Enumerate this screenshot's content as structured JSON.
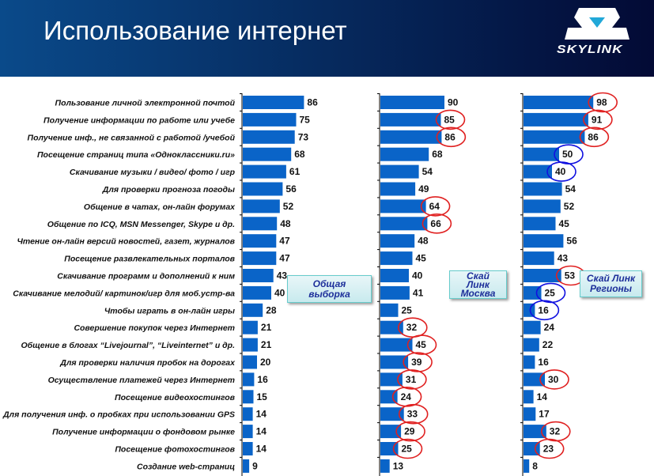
{
  "header": {
    "title": "Использование интернет",
    "logo_text": "SKYLINK"
  },
  "colors": {
    "bar": "#0a64c8",
    "red_circle": "#e02020",
    "blue_circle": "#1010e0"
  },
  "chart_data": {
    "type": "bar",
    "orientation": "horizontal",
    "categories": [
      "Пользование личной электронной почтой",
      "Получение информации по работе или учебе",
      "Получение инф., не связанной с работой /учебой",
      "Посещение страниц типа «Одноклассники.ru»",
      "Скачивание музыки / видео/ фото / игр",
      "Для проверки прогноза погоды",
      "Общение в чатах, он-лайн форумах",
      "Общение по ICQ, MSN Messenger, Skype и др.",
      "Чтение он-лайн версий новостей, газет, журналов",
      "Посещение  развлекательных порталов",
      "Скачивание программ и дополнений к ним",
      "Скачивание мелодий/ картинок/игр для моб.устр-ва",
      "Чтобы играть в он-лайн игры",
      "Совершение покупок через Интернет",
      "Общение в блогах “Livejournal”, “Liveinternet” и др.",
      "Для проверки наличия пробок на дорогах",
      "Осуществление платежей через Интернет",
      "Посещение видеохостингов",
      "Для получения инф. о пробках при использовании GPS",
      "Получение информации о фондовом рынке",
      "Посещение фотохостингов",
      "Создание web-страниц"
    ],
    "series": [
      {
        "name": "Общая выборка",
        "legend_lines": [
          "Общая",
          "выборка"
        ],
        "values": [
          86,
          75,
          73,
          68,
          61,
          56,
          52,
          48,
          47,
          47,
          43,
          40,
          28,
          21,
          21,
          20,
          16,
          15,
          14,
          14,
          14,
          9
        ],
        "circles": []
      },
      {
        "name": "Скай Линк Москва",
        "legend_lines": [
          "Скай",
          "Линк",
          "Москва"
        ],
        "values": [
          90,
          85,
          86,
          68,
          54,
          49,
          64,
          66,
          48,
          45,
          40,
          41,
          25,
          32,
          45,
          39,
          31,
          24,
          33,
          29,
          25,
          13
        ],
        "circles": [
          null,
          "red",
          "red",
          null,
          null,
          null,
          "red",
          "red",
          null,
          null,
          null,
          null,
          null,
          "red",
          "red",
          "red",
          "red",
          "red",
          "red",
          "red",
          "red",
          null
        ]
      },
      {
        "name": "Скай Линк Регионы",
        "legend_lines": [
          "Скай Линк",
          "Регионы"
        ],
        "values": [
          98,
          91,
          86,
          50,
          40,
          54,
          52,
          45,
          56,
          43,
          53,
          25,
          16,
          24,
          22,
          16,
          30,
          14,
          17,
          32,
          23,
          8
        ],
        "circles": [
          "red",
          "red",
          "red",
          "blue",
          "blue",
          null,
          null,
          null,
          null,
          null,
          "red",
          "blue",
          "blue",
          null,
          null,
          null,
          "red",
          null,
          null,
          "red",
          "red",
          null
        ]
      }
    ],
    "xlim": [
      0,
      100
    ],
    "grid": false,
    "legend": "inside each panel"
  }
}
